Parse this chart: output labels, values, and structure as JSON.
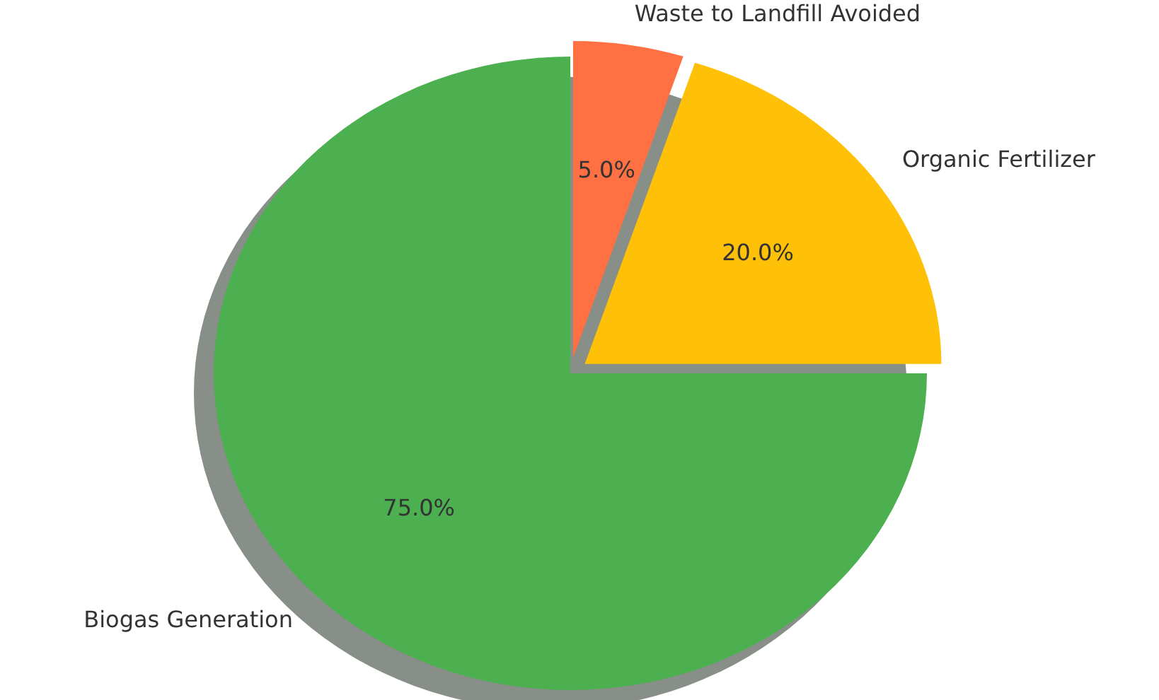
{
  "chart_data": {
    "type": "pie",
    "categories": [
      "Biogas Generation",
      "Organic Fertilizer",
      "Waste to Landfill Avoided"
    ],
    "values": [
      75,
      20,
      5
    ],
    "colors": [
      "#4caf50",
      "#ffc107",
      "#ff7043"
    ],
    "data_labels": true,
    "value_labels": [
      "75.0%",
      "20.0%",
      "5.0%"
    ]
  }
}
